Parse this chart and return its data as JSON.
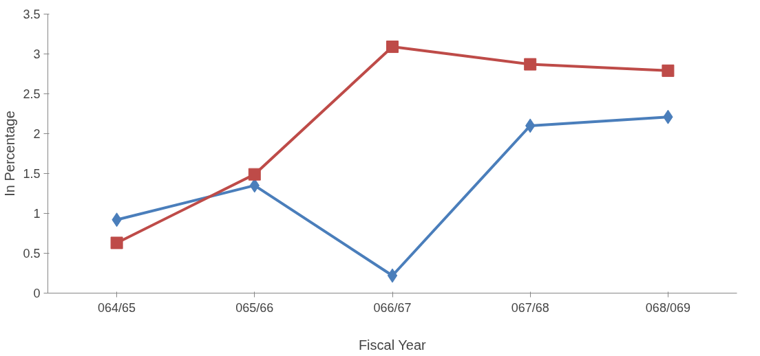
{
  "chart_data": {
    "type": "line",
    "xlabel": "Fiscal Year",
    "ylabel": "In Percentage",
    "categories": [
      "064/65",
      "065/66",
      "066/67",
      "067/68",
      "068/069"
    ],
    "series": [
      {
        "color": "#4a7ebb",
        "marker": "diamond",
        "values": [
          0.92,
          1.35,
          0.22,
          2.1,
          2.21
        ]
      },
      {
        "color": "#be4b48",
        "marker": "square",
        "values": [
          0.63,
          1.49,
          3.09,
          2.87,
          2.79
        ]
      }
    ],
    "ylim": [
      0,
      3.5
    ],
    "yticks": [
      0,
      0.5,
      1,
      1.5,
      2,
      2.5,
      3,
      3.5
    ],
    "grid": false
  }
}
